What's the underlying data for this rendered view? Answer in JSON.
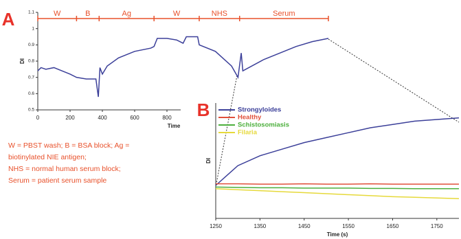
{
  "chart_data": [
    {
      "type": "line",
      "panel": "A",
      "xlabel": "Time",
      "ylabel": "DI",
      "xlim": [
        0,
        1800
      ],
      "xticks": [
        0,
        200,
        400,
        600,
        800
      ],
      "ylim": [
        0.5,
        1.1
      ],
      "yticks": [
        0.5,
        0.6,
        0.7,
        0.8,
        0.9,
        1,
        1.1
      ],
      "phases": {
        "labels": [
          "W",
          "B",
          "Ag",
          "W",
          "NHS",
          "Serum"
        ],
        "boundaries": [
          0,
          240,
          380,
          720,
          1000,
          1250,
          1800
        ],
        "color": "#e8502a"
      },
      "x": [
        0,
        20,
        50,
        100,
        150,
        200,
        240,
        300,
        360,
        375,
        385,
        400,
        430,
        500,
        600,
        700,
        720,
        740,
        800,
        860,
        900,
        920,
        990,
        1000,
        1100,
        1200,
        1240,
        1260,
        1270,
        1400,
        1500,
        1600,
        1700,
        1800
      ],
      "series": [
        {
          "name": "DI",
          "color": "#3b3f99",
          "values": [
            0.74,
            0.76,
            0.75,
            0.76,
            0.74,
            0.72,
            0.7,
            0.69,
            0.69,
            0.58,
            0.76,
            0.72,
            0.77,
            0.82,
            0.86,
            0.88,
            0.89,
            0.94,
            0.94,
            0.93,
            0.91,
            0.95,
            0.95,
            0.9,
            0.86,
            0.77,
            0.7,
            0.85,
            0.74,
            0.81,
            0.85,
            0.89,
            0.92,
            0.94
          ]
        }
      ]
    },
    {
      "type": "line",
      "panel": "B",
      "xlabel": "Time (s)",
      "ylabel": "DI",
      "xlim": [
        1250,
        1800
      ],
      "xticks": [
        1250,
        1350,
        1450,
        1550,
        1650,
        1750
      ],
      "ylim": [
        -0.1,
        0.25
      ],
      "legend": "upper left",
      "x": [
        1250,
        1300,
        1350,
        1400,
        1450,
        1500,
        1550,
        1600,
        1650,
        1700,
        1750,
        1800
      ],
      "series": [
        {
          "name": "Strongyloides",
          "color": "#3b3f99",
          "values": [
            0,
            0.06,
            0.09,
            0.11,
            0.13,
            0.145,
            0.16,
            0.175,
            0.185,
            0.195,
            0.2,
            0.205
          ]
        },
        {
          "name": "Healthy",
          "color": "#e0503a",
          "values": [
            0.005,
            0.005,
            0.004,
            0.004,
            0.005,
            0.004,
            0.004,
            0.005,
            0.004,
            0.004,
            0.004,
            0.004
          ]
        },
        {
          "name": "Schistosomiasis",
          "color": "#4caf3c",
          "values": [
            -0.005,
            -0.006,
            -0.007,
            -0.007,
            -0.008,
            -0.008,
            -0.008,
            -0.009,
            -0.009,
            -0.01,
            -0.01,
            -0.01
          ]
        },
        {
          "name": "Filaria",
          "color": "#e6d93a",
          "values": [
            -0.01,
            -0.013,
            -0.016,
            -0.019,
            -0.022,
            -0.025,
            -0.028,
            -0.031,
            -0.034,
            -0.036,
            -0.038,
            -0.04
          ]
        }
      ]
    }
  ],
  "note": {
    "lines": [
      "W = PBST wash; B = BSA block; Ag =",
      "biotinylated NIE antigen;",
      "NHS = normal human serum block;",
      "Serum = patient serum sample"
    ]
  }
}
